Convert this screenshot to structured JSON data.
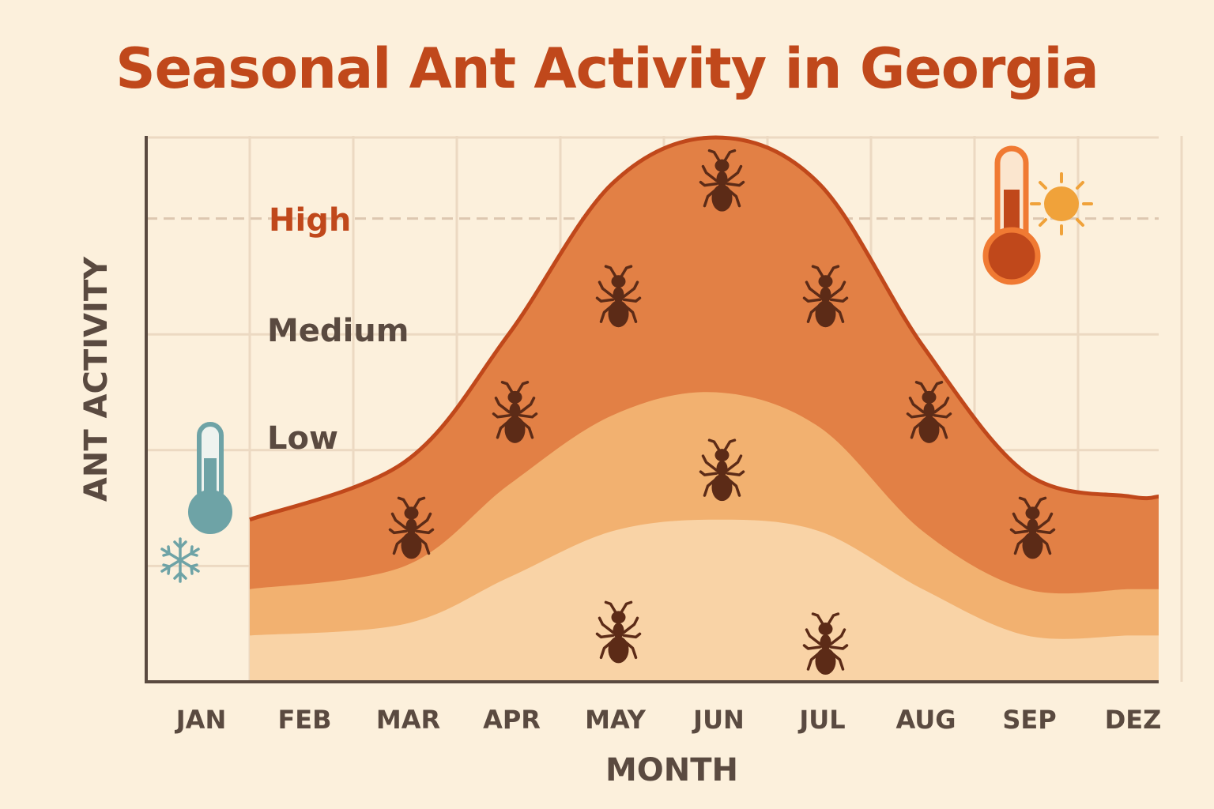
{
  "title": "Seasonal Ant Activity in Georgia",
  "chart_data": {
    "type": "area",
    "title": "Seasonal Ant Activity in Georgia",
    "xlabel": "MONTH",
    "ylabel": "ANT ACTIVITY",
    "categories": [
      "JAN",
      "FEB",
      "MAR",
      "APR",
      "MAY",
      "JUN",
      "JUL",
      "AUG",
      "SEP",
      "DEZ"
    ],
    "activity_levels": [
      "Low",
      "Medium",
      "High"
    ],
    "ylim": [
      0,
      5
    ],
    "grid": true,
    "series": [
      {
        "values": [
          null,
          0.4,
          0.5,
          0.9,
          1.3,
          1.4,
          1.3,
          0.8,
          0.4,
          0.4
        ],
        "color": "#f9d3a6"
      },
      {
        "values": [
          null,
          0.8,
          1.0,
          1.7,
          2.3,
          2.5,
          2.2,
          1.3,
          0.8,
          0.8
        ],
        "color": "#f2b170"
      },
      {
        "values": [
          null,
          1.4,
          1.9,
          3.0,
          4.3,
          4.7,
          4.3,
          2.9,
          1.8,
          1.6
        ],
        "color": "#e28045"
      }
    ],
    "ant_markers": [
      {
        "month": "MAR",
        "level": 1.3
      },
      {
        "month": "APR",
        "level": 2.3
      },
      {
        "month": "MAY",
        "level": 3.3
      },
      {
        "month": "MAY",
        "level": 0.4
      },
      {
        "month": "JUN",
        "level": 4.3
      },
      {
        "month": "JUN",
        "level": 1.8
      },
      {
        "month": "JUL",
        "level": 3.3
      },
      {
        "month": "JUL",
        "level": 0.3
      },
      {
        "month": "AUG",
        "level": 2.3
      },
      {
        "month": "SEP",
        "level": 1.3
      }
    ],
    "icons": [
      "cold-thermometer-icon",
      "snowflake-icon",
      "hot-thermometer-icon",
      "sun-icon"
    ],
    "colors": {
      "title": "#c0481b",
      "outline": "#c0481b",
      "high_label": "#c0481b",
      "text": "#5a4a40",
      "ant": "#5c2b17",
      "background": "#fcf0dc",
      "grid": "#ecd9c2",
      "cold": "#6ea3a6",
      "sun": "#f0a23a"
    }
  }
}
